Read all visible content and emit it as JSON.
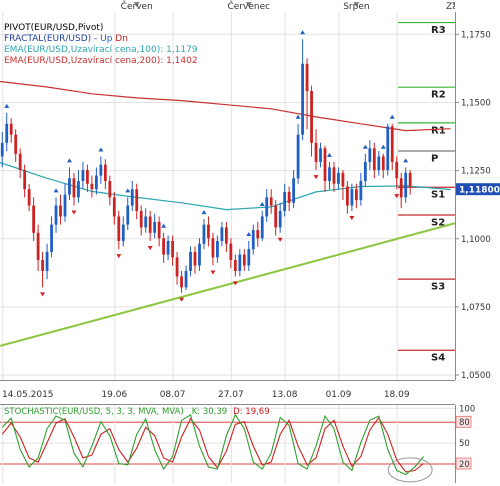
{
  "chart_data": [
    {
      "type": "candlestick",
      "legend": [
        {
          "text": "PIVOT(EUR/USD,Pivot)",
          "color": "#000000"
        },
        {
          "text": "FRACTAL(EUR/USD)",
          "color": "#1f3fa0",
          "suffix_up": "Up",
          "suffix_dn": "Dn",
          "up_color": "#1f60c8",
          "dn_color": "#c82020"
        },
        {
          "text": "EMA(EUR/USD,Uzavírací cena,100): 1,1179",
          "color": "#2aa6b0"
        },
        {
          "text": "EMA(EUR/USD,Uzavírací cena,200): 1,1402",
          "color": "#c83030"
        }
      ],
      "month_labels": [
        {
          "label": "Červen",
          "x": 30
        },
        {
          "label": "Červenec",
          "x": 55
        },
        {
          "label": "Srpen",
          "x": 79
        },
        {
          "label": "Září",
          "x": 101
        }
      ],
      "date_labels": [
        {
          "label": "14.05.2015",
          "x": 0
        },
        {
          "label": "19.06",
          "x": 25
        },
        {
          "label": "08.07",
          "x": 38
        },
        {
          "label": "27.07",
          "x": 51
        },
        {
          "label": "13.08",
          "x": 63
        },
        {
          "label": "01.09",
          "x": 75
        },
        {
          "label": "18.09",
          "x": 88
        }
      ],
      "y_ticks": [
        "1,1750",
        "1,1500",
        "1,1250",
        "1,1000",
        "1,0750",
        "1,0500"
      ],
      "ylim": [
        1.048,
        1.183
      ],
      "xlim": [
        -0.5,
        101
      ],
      "current_price": "1,11800",
      "current_value": 1.118,
      "pivot_levels": [
        {
          "name": "R3",
          "value": 1.1793
        },
        {
          "name": "R2",
          "value": 1.1556
        },
        {
          "name": "R1",
          "value": 1.1425
        },
        {
          "name": "P",
          "value": 1.1322
        },
        {
          "name": "S1",
          "value": 1.1189
        },
        {
          "name": "S2",
          "value": 1.1087
        },
        {
          "name": "S3",
          "value": 1.0852
        },
        {
          "name": "S4",
          "value": 1.0591
        }
      ],
      "trendline": {
        "x0": -0.5,
        "y0": 1.0605,
        "x1": 101,
        "y1": 1.1055
      },
      "ema100": [
        [
          -0.5,
          1.1278
        ],
        [
          10,
          1.122
        ],
        [
          20,
          1.1172
        ],
        [
          30,
          1.115
        ],
        [
          40,
          1.113
        ],
        [
          50,
          1.1105
        ],
        [
          60,
          1.1115
        ],
        [
          70,
          1.117
        ],
        [
          80,
          1.119
        ],
        [
          90,
          1.1192
        ],
        [
          100,
          1.1179
        ]
      ],
      "ema200": [
        [
          -0.5,
          1.1575
        ],
        [
          10,
          1.1555
        ],
        [
          20,
          1.153
        ],
        [
          30,
          1.1515
        ],
        [
          40,
          1.1505
        ],
        [
          50,
          1.149
        ],
        [
          60,
          1.1475
        ],
        [
          70,
          1.1445
        ],
        [
          80,
          1.142
        ],
        [
          90,
          1.1395
        ],
        [
          100,
          1.1402
        ]
      ],
      "candles": [
        [
          1.13,
          1.135,
          1.126,
          1.139
        ],
        [
          1.135,
          1.142,
          1.132,
          1.146
        ],
        [
          1.142,
          1.138,
          1.135,
          1.144
        ],
        [
          1.138,
          1.131,
          1.128,
          1.14
        ],
        [
          1.131,
          1.125,
          1.122,
          1.133
        ],
        [
          1.125,
          1.118,
          1.115,
          1.127
        ],
        [
          1.118,
          1.112,
          1.11,
          1.12
        ],
        [
          1.112,
          1.102,
          1.099,
          1.115
        ],
        [
          1.102,
          1.092,
          1.088,
          1.105
        ],
        [
          1.092,
          1.088,
          1.082,
          1.095
        ],
        [
          1.088,
          1.095,
          1.085,
          1.098
        ],
        [
          1.095,
          1.105,
          1.093,
          1.108
        ],
        [
          1.105,
          1.112,
          1.102,
          1.115
        ],
        [
          1.112,
          1.108,
          1.105,
          1.116
        ],
        [
          1.108,
          1.116,
          1.106,
          1.12
        ],
        [
          1.116,
          1.122,
          1.114,
          1.126
        ],
        [
          1.122,
          1.115,
          1.112,
          1.124
        ],
        [
          1.115,
          1.121,
          1.113,
          1.125
        ],
        [
          1.121,
          1.125,
          1.118,
          1.128
        ],
        [
          1.125,
          1.12,
          1.117,
          1.127
        ],
        [
          1.12,
          1.118,
          1.115,
          1.123
        ],
        [
          1.118,
          1.123,
          1.116,
          1.126
        ],
        [
          1.123,
          1.127,
          1.12,
          1.13
        ],
        [
          1.127,
          1.121,
          1.118,
          1.129
        ],
        [
          1.121,
          1.115,
          1.112,
          1.123
        ],
        [
          1.115,
          1.108,
          1.105,
          1.117
        ],
        [
          1.108,
          1.099,
          1.096,
          1.11
        ],
        [
          1.099,
          1.105,
          1.097,
          1.108
        ],
        [
          1.105,
          1.112,
          1.103,
          1.115
        ],
        [
          1.112,
          1.118,
          1.11,
          1.121
        ],
        [
          1.118,
          1.11,
          1.107,
          1.12
        ],
        [
          1.11,
          1.104,
          1.101,
          1.112
        ],
        [
          1.104,
          1.108,
          1.102,
          1.111
        ],
        [
          1.108,
          1.102,
          1.099,
          1.11
        ],
        [
          1.102,
          1.106,
          1.1,
          1.109
        ],
        [
          1.106,
          1.1,
          1.097,
          1.108
        ],
        [
          1.1,
          1.094,
          1.091,
          1.102
        ],
        [
          1.094,
          1.099,
          1.092,
          1.101
        ],
        [
          1.099,
          1.093,
          1.09,
          1.101
        ],
        [
          1.093,
          1.086,
          1.083,
          1.095
        ],
        [
          1.086,
          1.082,
          1.08,
          1.088
        ],
        [
          1.082,
          1.088,
          1.081,
          1.09
        ],
        [
          1.088,
          1.095,
          1.086,
          1.097
        ],
        [
          1.095,
          1.09,
          1.087,
          1.097
        ],
        [
          1.09,
          1.098,
          1.088,
          1.1
        ],
        [
          1.098,
          1.105,
          1.096,
          1.107
        ],
        [
          1.105,
          1.1,
          1.097,
          1.108
        ],
        [
          1.1,
          1.093,
          1.09,
          1.102
        ],
        [
          1.093,
          1.099,
          1.091,
          1.101
        ],
        [
          1.099,
          1.104,
          1.097,
          1.106
        ],
        [
          1.104,
          1.098,
          1.095,
          1.106
        ],
        [
          1.098,
          1.092,
          1.089,
          1.1
        ],
        [
          1.092,
          1.088,
          1.086,
          1.094
        ],
        [
          1.088,
          1.094,
          1.086,
          1.096
        ],
        [
          1.094,
          1.09,
          1.088,
          1.096
        ],
        [
          1.09,
          1.096,
          1.088,
          1.099
        ],
        [
          1.096,
          1.103,
          1.094,
          1.105
        ],
        [
          1.103,
          1.1,
          1.097,
          1.106
        ],
        [
          1.1,
          1.108,
          1.099,
          1.11
        ],
        [
          1.108,
          1.115,
          1.106,
          1.118
        ],
        [
          1.115,
          1.112,
          1.109,
          1.118
        ],
        [
          1.112,
          1.104,
          1.101,
          1.114
        ],
        [
          1.104,
          1.11,
          1.102,
          1.113
        ],
        [
          1.11,
          1.117,
          1.108,
          1.12
        ],
        [
          1.117,
          1.113,
          1.11,
          1.119
        ],
        [
          1.113,
          1.122,
          1.111,
          1.125
        ],
        [
          1.122,
          1.138,
          1.12,
          1.142
        ],
        [
          1.138,
          1.164,
          1.136,
          1.173
        ],
        [
          1.164,
          1.154,
          1.14,
          1.166
        ],
        [
          1.154,
          1.135,
          1.13,
          1.156
        ],
        [
          1.135,
          1.128,
          1.125,
          1.14
        ],
        [
          1.128,
          1.133,
          1.126,
          1.135
        ],
        [
          1.133,
          1.121,
          1.117,
          1.134
        ],
        [
          1.121,
          1.126,
          1.118,
          1.128
        ],
        [
          1.126,
          1.12,
          1.117,
          1.128
        ],
        [
          1.12,
          1.124,
          1.118,
          1.126
        ],
        [
          1.124,
          1.119,
          1.114,
          1.125
        ],
        [
          1.119,
          1.112,
          1.109,
          1.121
        ],
        [
          1.112,
          1.118,
          1.11,
          1.12
        ],
        [
          1.118,
          1.114,
          1.111,
          1.12
        ],
        [
          1.114,
          1.121,
          1.112,
          1.124
        ],
        [
          1.121,
          1.128,
          1.119,
          1.131
        ],
        [
          1.128,
          1.133,
          1.125,
          1.136
        ],
        [
          1.133,
          1.125,
          1.122,
          1.135
        ],
        [
          1.125,
          1.13,
          1.123,
          1.132
        ],
        [
          1.13,
          1.125,
          1.122,
          1.131
        ],
        [
          1.125,
          1.141,
          1.123,
          1.142
        ],
        [
          1.141,
          1.128,
          1.125,
          1.142
        ],
        [
          1.128,
          1.122,
          1.118,
          1.13
        ],
        [
          1.122,
          1.115,
          1.111,
          1.124
        ],
        [
          1.115,
          1.124,
          1.113,
          1.126
        ],
        [
          1.124,
          1.119,
          1.116,
          1.125
        ]
      ],
      "fractals_up": [
        1,
        12,
        15,
        22,
        28,
        36,
        45,
        55,
        58,
        66,
        67,
        73,
        81,
        85,
        87,
        90
      ],
      "fractals_dn": [
        9,
        16,
        26,
        33,
        40,
        47,
        52,
        62,
        70,
        78,
        88
      ]
    },
    {
      "type": "line",
      "title": "STOCHASTIC(EUR/USD, 5, 3, 3, MVA, MVA)",
      "k_label": "K: 30,39",
      "d_label": "D: 19,69",
      "y_ticks": [
        "100",
        "80",
        "50",
        "20"
      ],
      "levels": [
        80,
        20
      ],
      "ylim": [
        -8,
        104
      ],
      "xlim": [
        -0.5,
        101
      ],
      "k_color": "#2ea02e",
      "d_color": "#d02020",
      "k_points": [
        [
          0,
          72
        ],
        [
          2,
          85
        ],
        [
          4,
          40
        ],
        [
          6,
          15
        ],
        [
          8,
          28
        ],
        [
          10,
          70
        ],
        [
          12,
          88
        ],
        [
          14,
          82
        ],
        [
          16,
          35
        ],
        [
          18,
          15
        ],
        [
          20,
          45
        ],
        [
          22,
          80
        ],
        [
          24,
          60
        ],
        [
          26,
          20
        ],
        [
          28,
          18
        ],
        [
          30,
          62
        ],
        [
          32,
          84
        ],
        [
          34,
          40
        ],
        [
          36,
          12
        ],
        [
          38,
          30
        ],
        [
          40,
          82
        ],
        [
          42,
          90
        ],
        [
          44,
          45
        ],
        [
          46,
          15
        ],
        [
          48,
          12
        ],
        [
          50,
          60
        ],
        [
          52,
          90
        ],
        [
          54,
          70
        ],
        [
          56,
          22
        ],
        [
          58,
          12
        ],
        [
          60,
          35
        ],
        [
          62,
          86
        ],
        [
          64,
          75
        ],
        [
          66,
          20
        ],
        [
          68,
          12
        ],
        [
          70,
          45
        ],
        [
          72,
          88
        ],
        [
          74,
          70
        ],
        [
          76,
          22
        ],
        [
          78,
          10
        ],
        [
          80,
          50
        ],
        [
          82,
          82
        ],
        [
          84,
          88
        ],
        [
          86,
          40
        ],
        [
          88,
          10
        ],
        [
          90,
          4
        ],
        [
          92,
          15
        ],
        [
          94,
          30
        ]
      ],
      "d_points": [
        [
          0,
          62
        ],
        [
          2,
          78
        ],
        [
          4,
          58
        ],
        [
          6,
          28
        ],
        [
          8,
          22
        ],
        [
          10,
          50
        ],
        [
          12,
          78
        ],
        [
          14,
          84
        ],
        [
          16,
          58
        ],
        [
          18,
          28
        ],
        [
          20,
          32
        ],
        [
          22,
          62
        ],
        [
          24,
          70
        ],
        [
          26,
          40
        ],
        [
          28,
          22
        ],
        [
          30,
          42
        ],
        [
          32,
          72
        ],
        [
          34,
          60
        ],
        [
          36,
          28
        ],
        [
          38,
          22
        ],
        [
          40,
          58
        ],
        [
          42,
          84
        ],
        [
          44,
          68
        ],
        [
          46,
          30
        ],
        [
          48,
          14
        ],
        [
          50,
          38
        ],
        [
          52,
          76
        ],
        [
          54,
          80
        ],
        [
          56,
          45
        ],
        [
          58,
          18
        ],
        [
          60,
          22
        ],
        [
          62,
          62
        ],
        [
          64,
          82
        ],
        [
          66,
          45
        ],
        [
          68,
          18
        ],
        [
          70,
          28
        ],
        [
          72,
          70
        ],
        [
          74,
          82
        ],
        [
          76,
          45
        ],
        [
          78,
          16
        ],
        [
          80,
          30
        ],
        [
          82,
          68
        ],
        [
          84,
          86
        ],
        [
          86,
          62
        ],
        [
          88,
          25
        ],
        [
          90,
          8
        ],
        [
          92,
          10
        ],
        [
          94,
          20
        ]
      ],
      "highlight_ellipse": {
        "x": 91,
        "y": 8
      }
    }
  ]
}
